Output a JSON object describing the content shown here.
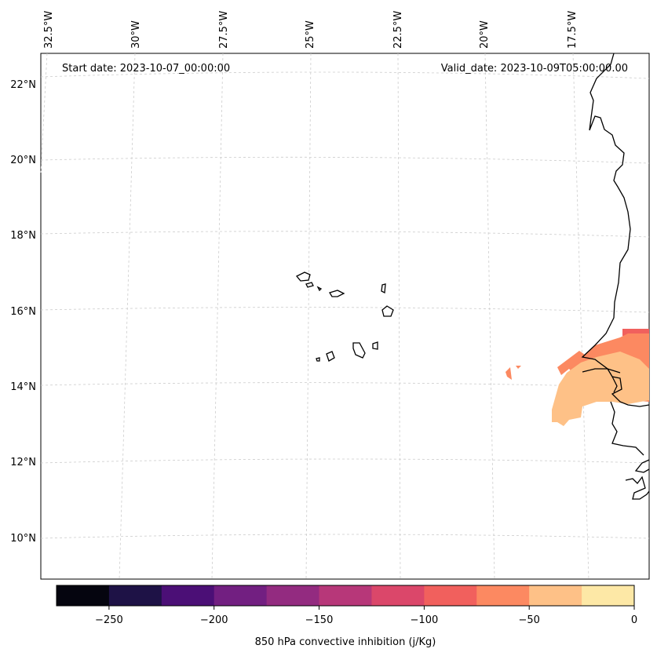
{
  "map": {
    "start_date": "Start date: 2023-10-07_00:00:00",
    "valid_date": "Valid_date: 2023-10-09T05:00:00.00",
    "lon_labels": [
      "32.5°W",
      "30°W",
      "27.5°W",
      "25°W",
      "22.5°W",
      "20°W",
      "17.5°W"
    ],
    "lat_labels": [
      "22°N",
      "20°N",
      "18°N",
      "16°N",
      "14°N",
      "12°N",
      "10°N"
    ],
    "grid": true
  },
  "colorbar": {
    "label": "850 hPa convective inhibition (j/Kg)",
    "ticks": [
      "−250",
      "−200",
      "−150",
      "−100",
      "−50",
      "0"
    ],
    "range": [
      -275,
      0
    ],
    "step": 25,
    "colormap": "magma",
    "colors": [
      "#05050f",
      "#1e1246",
      "#4b0f76",
      "#721f81",
      "#932b80",
      "#b73779",
      "#db476a",
      "#f1605d",
      "#fc8961",
      "#fec187",
      "#fde8a6"
    ]
  }
}
